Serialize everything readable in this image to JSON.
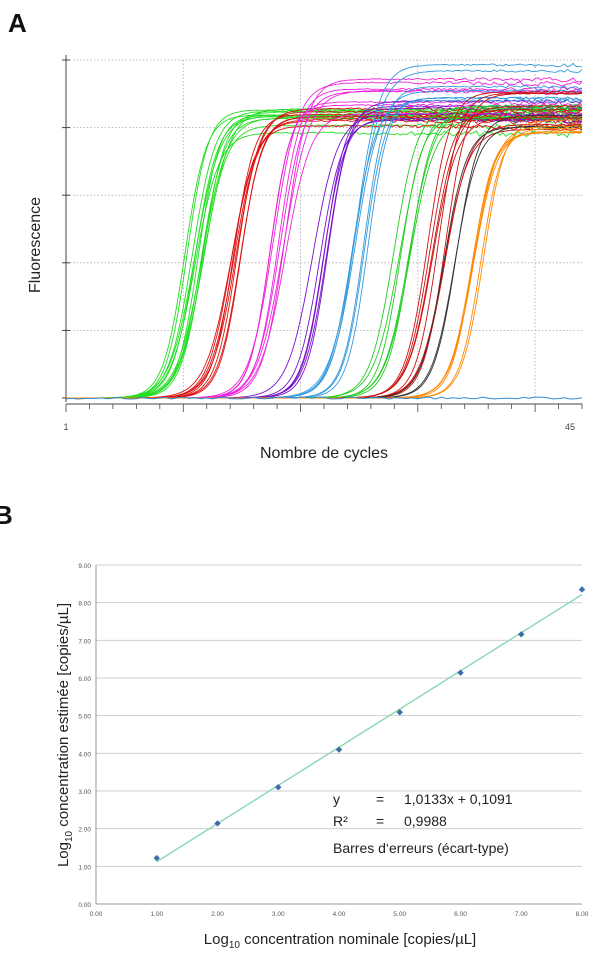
{
  "panels": {
    "a_label": "A",
    "b_label": "B"
  },
  "chart_data": [
    {
      "type": "line",
      "panel": "A",
      "title": "",
      "xlabel": "Nombre de cycles",
      "ylabel": "Fluorescence",
      "x_ticks_labeled": [
        "1",
        "45"
      ],
      "xlim": [
        1,
        45
      ],
      "ylim": [
        0,
        1
      ],
      "grid": true,
      "series_groups": [
        {
          "color": "#22dd22",
          "count": 12,
          "midpoint_cycle": 12.0,
          "plateau": [
            0.78,
            0.88
          ]
        },
        {
          "color": "#dd1111",
          "count": 8,
          "midpoint_cycle": 15.5,
          "plateau": [
            0.8,
            0.86
          ]
        },
        {
          "color": "#ee22dd",
          "count": 8,
          "midpoint_cycle": 19.0,
          "plateau": [
            0.82,
            0.96
          ]
        },
        {
          "color": "#7711cc",
          "count": 6,
          "midpoint_cycle": 22.5,
          "plateau": [
            0.82,
            0.88
          ]
        },
        {
          "color": "#3399dd",
          "count": 7,
          "midpoint_cycle": 26.0,
          "plateau": [
            0.82,
            1.0
          ]
        },
        {
          "color": "#22cc22",
          "count": 6,
          "midpoint_cycle": 29.5,
          "plateau": [
            0.8,
            0.9
          ]
        },
        {
          "color": "#cc1111",
          "count": 8,
          "midpoint_cycle": 32.5,
          "plateau": [
            0.78,
            0.92
          ]
        },
        {
          "color": "#333333",
          "count": 3,
          "midpoint_cycle": 33.5,
          "plateau": [
            0.8,
            0.84
          ]
        },
        {
          "color": "#ff8800",
          "count": 6,
          "midpoint_cycle": 35.8,
          "plateau": [
            0.78,
            0.86
          ]
        }
      ],
      "baseline_series": {
        "color": "#3388cc",
        "value": 0.0
      }
    },
    {
      "type": "scatter",
      "panel": "B",
      "title": "",
      "xlabel": "Log10 concentration nominale [copies/µL]",
      "ylabel": "Log10 concentration estimée [copies/µL]",
      "xlim": [
        0,
        8
      ],
      "ylim": [
        0,
        9
      ],
      "x_ticks": [
        "0.00",
        "1.00",
        "2.00",
        "3.00",
        "4.00",
        "5.00",
        "6.00",
        "7.00",
        "8.00"
      ],
      "y_ticks": [
        "0.00",
        "1.00",
        "2.00",
        "3.00",
        "4.00",
        "5.00",
        "6.00",
        "7.00",
        "8.00",
        "9.00"
      ],
      "x": [
        1,
        2,
        3,
        4,
        5,
        6,
        7,
        8
      ],
      "y": [
        1.22,
        2.14,
        3.1,
        4.1,
        5.09,
        6.14,
        7.16,
        8.35
      ],
      "point_color": "#3a6ea5",
      "fit_color": "#8fd9b6",
      "fit": {
        "slope": 1.0133,
        "intercept": 0.1091
      },
      "grid": true,
      "annotations": {
        "eq_y": "y",
        "eq_eq1": "=",
        "eq_value": "1,0133x + 0,1091",
        "r2_label": "R²",
        "eq_eq2": "=",
        "r2_value": "0,9988",
        "error_bars": "Barres d‘erreurs (écart-type)"
      }
    }
  ]
}
